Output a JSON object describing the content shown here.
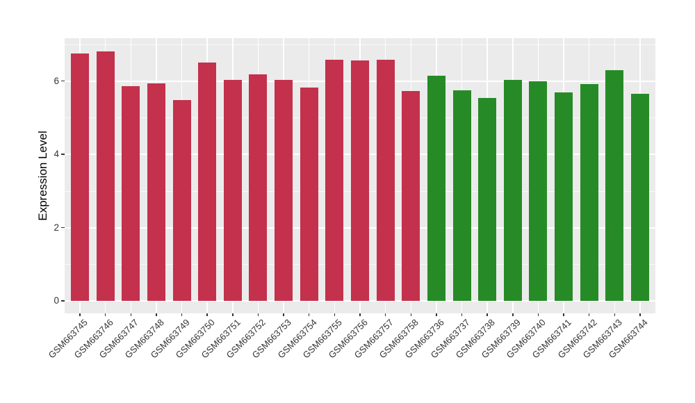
{
  "chart_data": {
    "type": "bar",
    "title": "",
    "xlabel": "",
    "ylabel": "Expression Level",
    "yticks": [
      0,
      2,
      4,
      6
    ],
    "minor_gridlines_at": [
      1,
      3,
      5,
      7
    ],
    "ylim": [
      -0.34,
      7.17
    ],
    "grid": "on",
    "legend_position": "none",
    "panel_background": "#EBEBEB",
    "grid_color": "#FFFFFF",
    "axis_text_color": "#333333",
    "bar_width_ratio": 0.7,
    "group_colors": {
      "red": "#C3314C",
      "green": "#268B26"
    },
    "categories": [
      "GSM663745",
      "GSM663746",
      "GSM663747",
      "GSM663748",
      "GSM663749",
      "GSM663750",
      "GSM663751",
      "GSM663752",
      "GSM663753",
      "GSM663754",
      "GSM663755",
      "GSM663756",
      "GSM663757",
      "GSM663758",
      "GSM663736",
      "GSM663737",
      "GSM663738",
      "GSM663739",
      "GSM663740",
      "GSM663741",
      "GSM663742",
      "GSM663743",
      "GSM663744"
    ],
    "values": [
      6.76,
      6.81,
      5.87,
      5.93,
      5.48,
      6.51,
      6.04,
      6.18,
      6.03,
      5.83,
      6.59,
      6.57,
      6.59,
      5.73,
      6.15,
      5.74,
      5.54,
      6.03,
      6.0,
      5.7,
      5.91,
      6.3,
      5.65
    ],
    "groups": [
      "red",
      "red",
      "red",
      "red",
      "red",
      "red",
      "red",
      "red",
      "red",
      "red",
      "red",
      "red",
      "red",
      "red",
      "green",
      "green",
      "green",
      "green",
      "green",
      "green",
      "green",
      "green",
      "green"
    ]
  }
}
